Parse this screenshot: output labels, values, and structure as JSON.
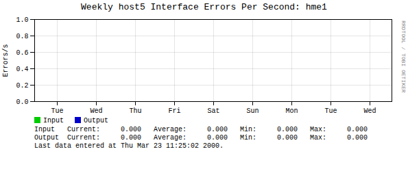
{
  "chart_data": {
    "type": "line",
    "title": "Weekly host5 Interface Errors Per Second: hme1",
    "ylabel": "Errors/s",
    "categories": [
      "Tue",
      "Wed",
      "Thu",
      "Fri",
      "Sat",
      "Sun",
      "Mon",
      "Tue",
      "Wed"
    ],
    "series": [
      {
        "name": "Input",
        "color": "#00cc00",
        "values": [
          null,
          null,
          null,
          null,
          null,
          null,
          null,
          null,
          null
        ]
      },
      {
        "name": "Output",
        "color": "#0000cc",
        "values": [
          null,
          null,
          null,
          null,
          null,
          null,
          null,
          null,
          null
        ]
      }
    ],
    "ylim": [
      0.0,
      1.0
    ],
    "yticks": [
      {
        "value": 0.0,
        "label": "0.0"
      },
      0.2,
      0.4,
      0.6,
      0.8,
      {
        "value": 1.0,
        "label": "1.0"
      }
    ],
    "grid": true,
    "annotations": [
      "Input   Current:     0.000   Average:     0.000   Min:     0.000   Max:     0.000",
      "Output  Current:     0.000   Average:     0.000   Min:     0.000   Max:     0.000",
      "Last data entered at Thu Mar 23 11:25:02 2000.",
      "RRDTOOL / TOBI OETIKER"
    ]
  }
}
